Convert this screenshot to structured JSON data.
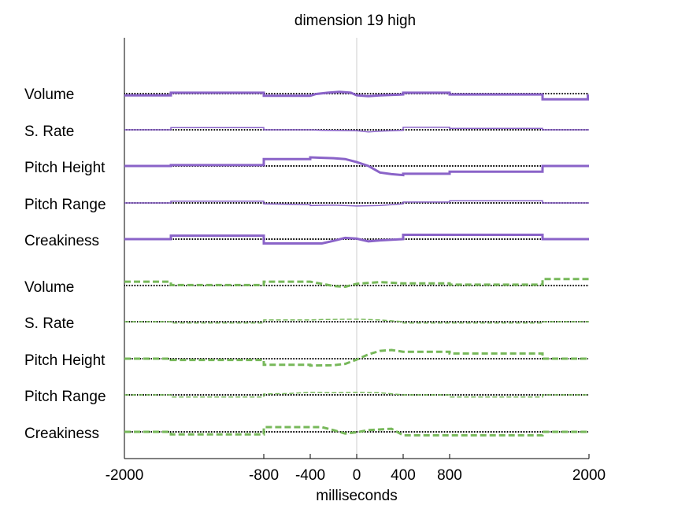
{
  "chart_data": {
    "type": "line",
    "title": "dimension 19 high",
    "xlabel": "milliseconds",
    "xlim": [
      -2000,
      2000
    ],
    "xticks": [
      -2000,
      -800,
      -400,
      0,
      400,
      800,
      2000
    ],
    "colors": {
      "purple": "#8a63c8",
      "green": "#77b85a",
      "baseline": "#000000",
      "zero_line": "#cccccc"
    },
    "series": [
      {
        "name": "Volume",
        "group": "purple",
        "style": "solid-thick",
        "points": [
          [
            -2000,
            0.4
          ],
          [
            -1600,
            0.4
          ],
          [
            -1600,
            -0.2
          ],
          [
            -800,
            -0.2
          ],
          [
            -800,
            0.5
          ],
          [
            -400,
            0.5
          ],
          [
            -350,
            0.1
          ],
          [
            -250,
            -0.2
          ],
          [
            -150,
            -0.4
          ],
          [
            -50,
            -0.2
          ],
          [
            0,
            0.4
          ],
          [
            100,
            0.6
          ],
          [
            200,
            0.4
          ],
          [
            400,
            0.2
          ],
          [
            400,
            -0.2
          ],
          [
            800,
            -0.2
          ],
          [
            800,
            0.2
          ],
          [
            1600,
            0.2
          ],
          [
            1600,
            1.3
          ],
          [
            1990,
            1.3
          ],
          [
            1990,
            0.2
          ]
        ]
      },
      {
        "name": "S. Rate",
        "group": "purple",
        "style": "solid-thin",
        "points": [
          [
            -2000,
            0
          ],
          [
            -1600,
            0
          ],
          [
            -1600,
            -0.5
          ],
          [
            -800,
            -0.5
          ],
          [
            -800,
            0
          ],
          [
            -400,
            0
          ],
          [
            -300,
            0.1
          ],
          [
            0,
            0.2
          ],
          [
            100,
            0.5
          ],
          [
            200,
            0.3
          ],
          [
            400,
            0.1
          ],
          [
            400,
            -0.6
          ],
          [
            800,
            -0.6
          ],
          [
            800,
            -0.3
          ],
          [
            1600,
            -0.3
          ],
          [
            1600,
            0
          ],
          [
            2000,
            0
          ]
        ]
      },
      {
        "name": "Pitch Height",
        "group": "purple",
        "style": "solid-thick",
        "points": [
          [
            -2000,
            0
          ],
          [
            -1600,
            0
          ],
          [
            -1600,
            -0.2
          ],
          [
            -800,
            -0.2
          ],
          [
            -800,
            -1.6
          ],
          [
            -400,
            -1.6
          ],
          [
            -400,
            -2
          ],
          [
            -300,
            -1.9
          ],
          [
            -200,
            -1.8
          ],
          [
            -100,
            -1.6
          ],
          [
            0,
            -0.9
          ],
          [
            100,
            0
          ],
          [
            200,
            1.5
          ],
          [
            300,
            1.9
          ],
          [
            400,
            2.1
          ],
          [
            400,
            1.8
          ],
          [
            800,
            1.8
          ],
          [
            800,
            1.3
          ],
          [
            1600,
            1.3
          ],
          [
            1600,
            0
          ],
          [
            2000,
            0
          ]
        ]
      },
      {
        "name": "Pitch Range",
        "group": "purple",
        "style": "solid-thin",
        "points": [
          [
            -2000,
            0
          ],
          [
            -1600,
            0
          ],
          [
            -1600,
            -0.4
          ],
          [
            -800,
            -0.4
          ],
          [
            -800,
            0.2
          ],
          [
            -400,
            0.4
          ],
          [
            -400,
            0.6
          ],
          [
            -200,
            0.5
          ],
          [
            0,
            0.7
          ],
          [
            200,
            0.6
          ],
          [
            400,
            0.2
          ],
          [
            400,
            -0.2
          ],
          [
            800,
            -0.2
          ],
          [
            800,
            -0.5
          ],
          [
            1600,
            -0.5
          ],
          [
            1600,
            0
          ],
          [
            2000,
            0
          ]
        ]
      },
      {
        "name": "Creakiness",
        "group": "purple",
        "style": "solid-thick",
        "points": [
          [
            -2000,
            0
          ],
          [
            -1600,
            0
          ],
          [
            -1600,
            -0.8
          ],
          [
            -800,
            -0.8
          ],
          [
            -800,
            1
          ],
          [
            -300,
            1
          ],
          [
            -200,
            0.4
          ],
          [
            -100,
            -0.3
          ],
          [
            0,
            -0.1
          ],
          [
            100,
            0.5
          ],
          [
            200,
            0.3
          ],
          [
            400,
            0
          ],
          [
            400,
            -1
          ],
          [
            1600,
            -1
          ],
          [
            1600,
            0
          ],
          [
            2000,
            0
          ]
        ]
      },
      {
        "name": "Volume",
        "group": "green",
        "style": "dashed-thick",
        "points": [
          [
            -2000,
            -0.9
          ],
          [
            -1600,
            -0.9
          ],
          [
            -1600,
            -0.1
          ],
          [
            -800,
            -0.1
          ],
          [
            -800,
            -0.9
          ],
          [
            -400,
            -0.9
          ],
          [
            -300,
            -0.4
          ],
          [
            -200,
            0.1
          ],
          [
            -100,
            0.3
          ],
          [
            0,
            -0.4
          ],
          [
            200,
            -0.8
          ],
          [
            400,
            -0.5
          ],
          [
            800,
            -0.5
          ],
          [
            800,
            -0.2
          ],
          [
            1600,
            -0.2
          ],
          [
            1600,
            -1.5
          ],
          [
            2000,
            -1.5
          ]
        ]
      },
      {
        "name": "S. Rate",
        "group": "green",
        "style": "dashed-thin",
        "points": [
          [
            -2000,
            0
          ],
          [
            -1600,
            0
          ],
          [
            -1600,
            0.3
          ],
          [
            -800,
            0.3
          ],
          [
            -800,
            -0.4
          ],
          [
            -400,
            -0.4
          ],
          [
            -300,
            -0.5
          ],
          [
            0,
            -0.6
          ],
          [
            200,
            -0.4
          ],
          [
            400,
            0
          ],
          [
            400,
            0.3
          ],
          [
            1600,
            0.3
          ],
          [
            1600,
            0
          ],
          [
            2000,
            0
          ]
        ]
      },
      {
        "name": "Pitch Height",
        "group": "green",
        "style": "dashed-thick",
        "points": [
          [
            -2000,
            0
          ],
          [
            -1600,
            0
          ],
          [
            -1600,
            0.3
          ],
          [
            -800,
            0.3
          ],
          [
            -800,
            1.4
          ],
          [
            -400,
            1.4
          ],
          [
            -400,
            1.6
          ],
          [
            -200,
            1.5
          ],
          [
            -100,
            1.2
          ],
          [
            0,
            0.2
          ],
          [
            100,
            -1
          ],
          [
            200,
            -1.8
          ],
          [
            300,
            -2
          ],
          [
            400,
            -1.6
          ],
          [
            800,
            -1.6
          ],
          [
            800,
            -1.2
          ],
          [
            1600,
            -1.2
          ],
          [
            1600,
            0
          ],
          [
            2000,
            0
          ]
        ]
      },
      {
        "name": "Pitch Range",
        "group": "green",
        "style": "dashed-thin",
        "points": [
          [
            -2000,
            0
          ],
          [
            -1600,
            0
          ],
          [
            -1600,
            0.5
          ],
          [
            -800,
            0.5
          ],
          [
            -800,
            -0.2
          ],
          [
            -600,
            -0.3
          ],
          [
            -400,
            -0.6
          ],
          [
            -200,
            -0.5
          ],
          [
            0,
            -0.6
          ],
          [
            200,
            -0.5
          ],
          [
            400,
            0
          ],
          [
            800,
            0
          ],
          [
            800,
            0.5
          ],
          [
            1600,
            0.5
          ],
          [
            1600,
            0
          ],
          [
            2000,
            0
          ]
        ]
      },
      {
        "name": "Creakiness",
        "group": "green",
        "style": "dashed-thick",
        "points": [
          [
            -2000,
            0
          ],
          [
            -1600,
            0
          ],
          [
            -1600,
            0.6
          ],
          [
            -800,
            0.6
          ],
          [
            -800,
            -1.1
          ],
          [
            -300,
            -1.1
          ],
          [
            -200,
            -0.4
          ],
          [
            -100,
            0.4
          ],
          [
            0,
            0.1
          ],
          [
            100,
            -0.4
          ],
          [
            300,
            -0.7
          ],
          [
            400,
            0.8
          ],
          [
            1600,
            0.8
          ],
          [
            1600,
            0
          ],
          [
            2000,
            0
          ]
        ]
      }
    ]
  }
}
